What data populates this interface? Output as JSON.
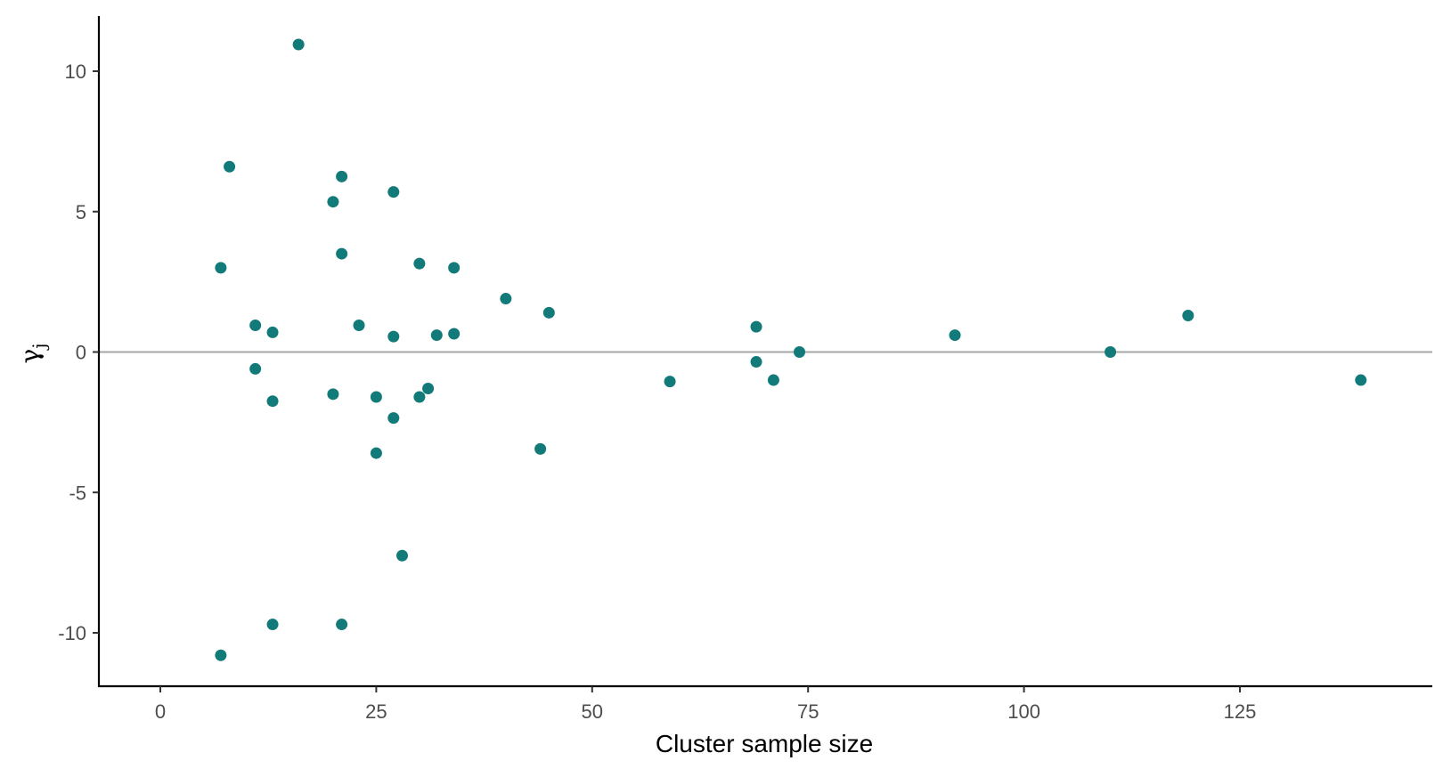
{
  "chart_data": {
    "type": "scatter",
    "title": "",
    "xlabel": "Cluster sample size",
    "ylabel_symbol": "γ",
    "ylabel_subscript": "j",
    "xlim": [
      -7,
      147
    ],
    "ylim": [
      -11.9,
      12
    ],
    "xticks": [
      0,
      25,
      50,
      75,
      100,
      125
    ],
    "yticks": [
      -10,
      -5,
      0,
      5,
      10
    ],
    "grid": false,
    "reference_line": {
      "y": 0,
      "color": "#a6a6a6"
    },
    "point_color": "#137a7a",
    "points": [
      {
        "x": 7,
        "y": 3.0
      },
      {
        "x": 7,
        "y": -10.8
      },
      {
        "x": 8,
        "y": 6.6
      },
      {
        "x": 11,
        "y": 0.95
      },
      {
        "x": 11,
        "y": -0.6
      },
      {
        "x": 13,
        "y": 0.7
      },
      {
        "x": 13,
        "y": -1.75
      },
      {
        "x": 13,
        "y": -9.7
      },
      {
        "x": 16,
        "y": 10.95
      },
      {
        "x": 20,
        "y": 5.35
      },
      {
        "x": 20,
        "y": -1.5
      },
      {
        "x": 21,
        "y": 6.25
      },
      {
        "x": 21,
        "y": 3.5
      },
      {
        "x": 21,
        "y": -9.7
      },
      {
        "x": 23,
        "y": 0.95
      },
      {
        "x": 25,
        "y": -1.6
      },
      {
        "x": 25,
        "y": -3.6
      },
      {
        "x": 27,
        "y": 5.7
      },
      {
        "x": 27,
        "y": 0.55
      },
      {
        "x": 27,
        "y": -2.35
      },
      {
        "x": 28,
        "y": -7.25
      },
      {
        "x": 30,
        "y": 3.15
      },
      {
        "x": 30,
        "y": -1.6
      },
      {
        "x": 31,
        "y": -1.3
      },
      {
        "x": 32,
        "y": 0.6
      },
      {
        "x": 34,
        "y": 3.0
      },
      {
        "x": 34,
        "y": 0.65
      },
      {
        "x": 40,
        "y": 1.9
      },
      {
        "x": 44,
        "y": -3.45
      },
      {
        "x": 45,
        "y": 1.4
      },
      {
        "x": 59,
        "y": -1.05
      },
      {
        "x": 69,
        "y": 0.9
      },
      {
        "x": 69,
        "y": -0.35
      },
      {
        "x": 71,
        "y": -1.0
      },
      {
        "x": 74,
        "y": 0.0
      },
      {
        "x": 92,
        "y": 0.6
      },
      {
        "x": 110,
        "y": 0.0
      },
      {
        "x": 119,
        "y": 1.3
      },
      {
        "x": 139,
        "y": -1.0
      }
    ]
  }
}
